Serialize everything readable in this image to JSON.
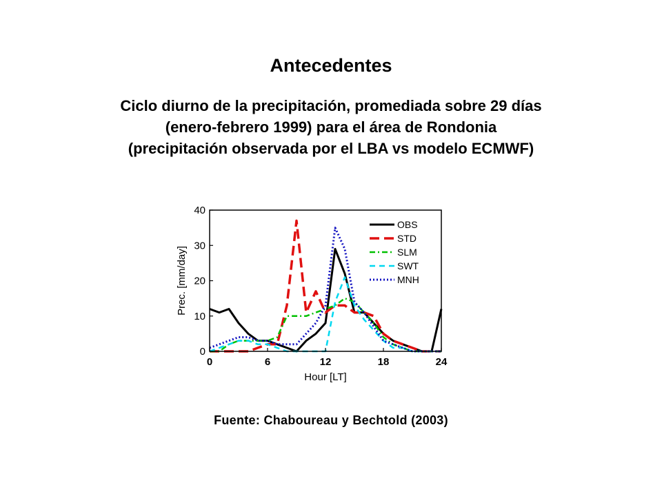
{
  "slide": {
    "title": "Antecedentes",
    "subtitle_lines": [
      "Ciclo diurno de la precipitación, promediada sobre 29 días",
      "(enero-febrero 1999) para el área de Rondonia",
      "(precipitación observada por el LBA vs modelo ECMWF)"
    ],
    "source": "Fuente: Chaboureau y Bechtold (2003)"
  },
  "chart_data": {
    "type": "line",
    "xlabel": "Hour [LT]",
    "ylabel": "Prec. [mm/day]",
    "xlim": [
      0,
      24
    ],
    "ylim": [
      0,
      40
    ],
    "xticks": [
      0,
      6,
      12,
      18,
      24
    ],
    "yticks": [
      0,
      10,
      20,
      30,
      40
    ],
    "grid": false,
    "legend_position": "top-right",
    "series": [
      {
        "name": "OBS",
        "color": "#000000",
        "dash": "solid",
        "x": [
          0,
          1,
          2,
          3,
          4,
          5,
          6,
          7,
          8,
          9,
          10,
          11,
          12,
          13,
          14,
          15,
          16,
          17,
          18,
          19,
          20,
          21,
          22,
          23,
          24
        ],
        "y": [
          12,
          11,
          12,
          8,
          5,
          3,
          3,
          2,
          1,
          0,
          3,
          5,
          8,
          29,
          22,
          11,
          11,
          8,
          5,
          3,
          2,
          1,
          0,
          0,
          12
        ]
      },
      {
        "name": "STD",
        "color": "#e01010",
        "dash": "long",
        "x": [
          0,
          1,
          2,
          3,
          4,
          5,
          6,
          7,
          8,
          9,
          10,
          11,
          12,
          13,
          14,
          15,
          16,
          17,
          18,
          19,
          20,
          21,
          22,
          23,
          24
        ],
        "y": [
          0,
          0,
          0,
          0,
          0,
          1,
          2,
          2,
          13,
          37,
          11,
          17,
          11,
          13,
          13,
          11,
          11,
          10,
          5,
          3,
          2,
          1,
          0,
          0,
          0
        ]
      },
      {
        "name": "SLM",
        "color": "#00c000",
        "dash": "dashdot",
        "x": [
          0,
          1,
          2,
          3,
          4,
          5,
          6,
          7,
          8,
          9,
          10,
          11,
          12,
          13,
          14,
          15,
          16,
          17,
          18,
          19,
          20,
          21,
          22,
          23,
          24
        ],
        "y": [
          0,
          0,
          2,
          3,
          3,
          3,
          3,
          4,
          10,
          10,
          10,
          11,
          12,
          13,
          15,
          14,
          11,
          8,
          4,
          2,
          1,
          0,
          0,
          0,
          0
        ]
      },
      {
        "name": "SWT",
        "color": "#00d8f0",
        "dash": "dash",
        "x": [
          0,
          1,
          2,
          3,
          4,
          5,
          6,
          7,
          8,
          9,
          10,
          11,
          12,
          13,
          14,
          15,
          16,
          17,
          18,
          19,
          20,
          21,
          22,
          23,
          24
        ],
        "y": [
          0,
          1,
          2,
          3,
          3,
          2,
          2,
          1,
          0,
          0,
          0,
          0,
          0,
          14,
          21,
          13,
          9,
          6,
          3,
          1,
          1,
          0,
          0,
          0,
          0
        ]
      },
      {
        "name": "MNH",
        "color": "#1010c0",
        "dash": "dot",
        "x": [
          0,
          1,
          2,
          3,
          4,
          5,
          6,
          7,
          8,
          9,
          10,
          11,
          12,
          13,
          14,
          15,
          16,
          17,
          18,
          19,
          20,
          21,
          22,
          23,
          24
        ],
        "y": [
          1,
          2,
          3,
          4,
          4,
          3,
          3,
          2,
          2,
          2,
          5,
          8,
          13,
          35,
          29,
          14,
          11,
          7,
          3,
          2,
          1,
          0,
          0,
          0,
          0
        ]
      }
    ]
  }
}
